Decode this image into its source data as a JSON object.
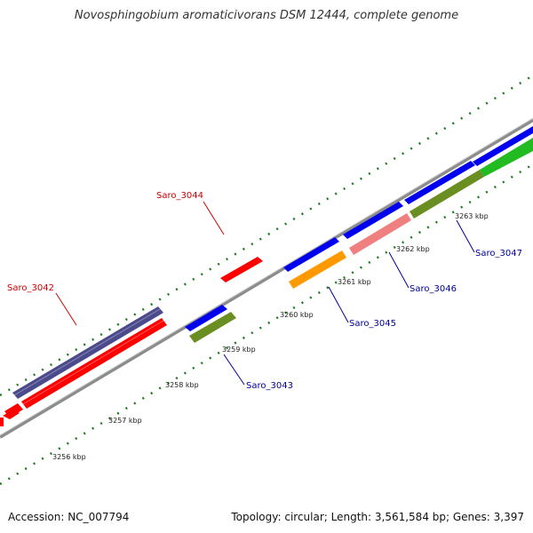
{
  "title": "Novosphingobium aromaticivorans DSM 12444, complete genome",
  "footer": {
    "accession": "Accession: NC_007794",
    "topology": "Topology: circular; Length: 3,561,584 bp; Genes: 3,397"
  },
  "scale_labels": [
    "3256 kbp",
    "3257 kbp",
    "3258 kbp",
    "3259 kbp",
    "3260 kbp",
    "3261 kbp",
    "3262 kbp",
    "3263 kbp"
  ],
  "gene_labels": {
    "saro_3042": "Saro_3042",
    "saro_3043": "Saro_3043",
    "saro_3044": "Saro_3044",
    "saro_3045": "Saro_3045",
    "saro_3046": "Saro_3046",
    "saro_3047": "Saro_3047"
  },
  "colors": {
    "reverse_label": "#cc0000",
    "forward_label": "#000099",
    "backbone": "#8c8c8c",
    "tick": "#1f7a1f",
    "red": "#ff0000",
    "blue": "#0000ee",
    "purple": "#4b4a8c",
    "olive": "#6b8e23",
    "orange": "#ff9900",
    "pink": "#f08080",
    "green": "#22bb22"
  }
}
